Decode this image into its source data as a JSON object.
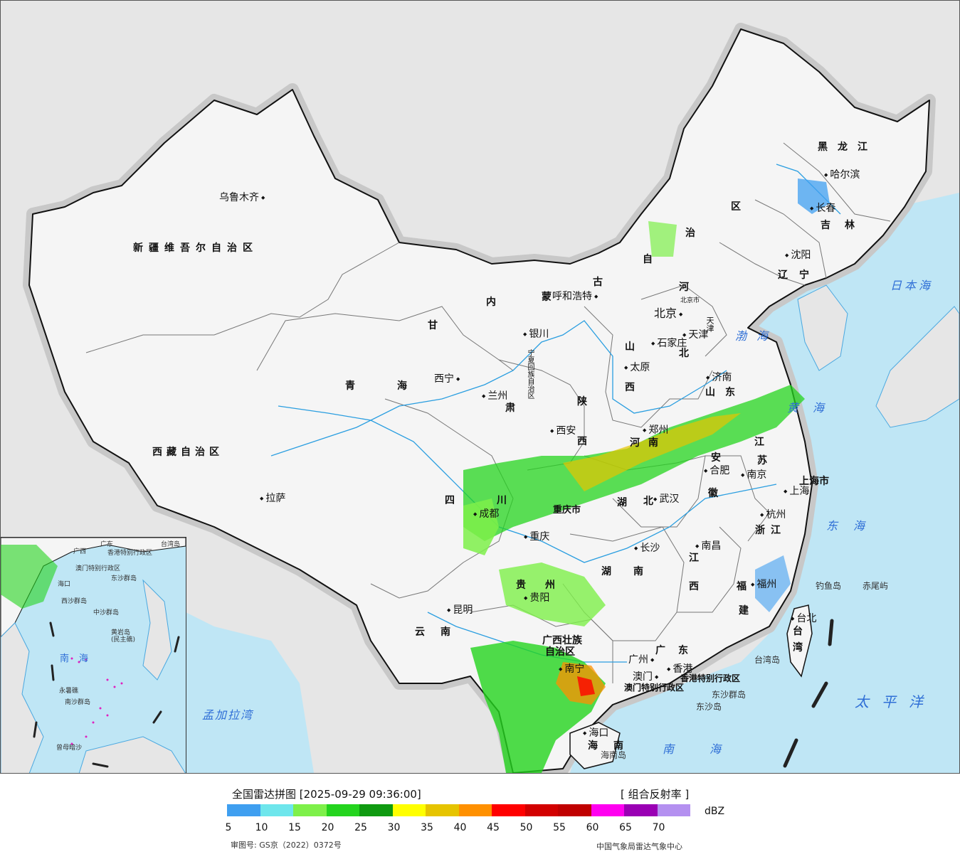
{
  "legend": {
    "title": "全国雷达拼图 [2025-09-29 09:36:00]",
    "product": "[ 组合反射率 ]",
    "unit": "dBZ",
    "ticks": [
      "5",
      "10",
      "15",
      "20",
      "25",
      "30",
      "35",
      "40",
      "45",
      "50",
      "55",
      "60",
      "65",
      "70"
    ],
    "colors": [
      "#3f9ff0",
      "#6ee6ec",
      "#7ef04a",
      "#24d41e",
      "#0f9a10",
      "#ffff00",
      "#e6c400",
      "#ff9000",
      "#ff0000",
      "#d20000",
      "#c00000",
      "#ff00f0",
      "#9a00b4",
      "#b490f0"
    ],
    "approval": "审图号: GS京（2022）0372号",
    "source": "中国气象局雷达气象中心"
  },
  "map": {
    "colors": {
      "land": "#f5f5f5",
      "ocean": "#bfe6f5",
      "foreign": "#e6e6e6",
      "border": "#111111",
      "river": "#2a9ee0"
    },
    "cities": {
      "urumqi": "乌鲁木齐",
      "lhasa": "拉萨",
      "xining": "西宁",
      "lanzhou": "兰州",
      "yinchuan": "银川",
      "hohhot": "呼和浩特",
      "beijing": "北京",
      "beijing_city": "北京市",
      "tianjin": "天津",
      "shijiazhuang": "石家庄",
      "taiyuan": "太原",
      "jinan": "济南",
      "zhengzhou": "郑州",
      "xian": "西安",
      "chengdu": "成都",
      "chongqing": "重庆",
      "wuhan": "武汉",
      "hefei": "合肥",
      "nanjing": "南京",
      "shanghai": "上海",
      "hangzhou": "杭州",
      "changsha": "长沙",
      "nanchang": "南昌",
      "fuzhou": "福州",
      "guiyang": "贵阳",
      "kunming": "昆明",
      "nanning": "南宁",
      "guangzhou": "广州",
      "hongkong": "香港",
      "macau": "澳门",
      "haikou": "海口",
      "taipei": "台北",
      "harbin": "哈尔滨",
      "changchun": "长春",
      "shenyang": "沈阳"
    },
    "provinces": {
      "xinjiang": "新疆维吾尔自治区",
      "tibet": "西藏自治区",
      "qinghai_1": "青",
      "qinghai_2": "海",
      "gansu_1": "甘",
      "gansu_2": "肃",
      "neimeng_1": "内",
      "neimeng_2": "蒙",
      "neimeng_3": "古",
      "neimeng_4": "自",
      "neimeng_5": "治",
      "neimeng_6": "区",
      "heilongjiang": "黑龙江",
      "jilin": "吉林",
      "liaoning": "辽宁",
      "hebei_1": "河",
      "hebei_2": "北",
      "shanxi_1": "山",
      "shanxi_2": "西",
      "shandong": "山东",
      "shaanxi_1": "陕",
      "shaanxi_2": "西",
      "henan": "河南",
      "ningxia": "宁夏回族自治区",
      "sichuan_1": "四",
      "sichuan_2": "川",
      "chongqing_prov": "重庆市",
      "hubei_1": "湖",
      "hubei_2": "北",
      "anhui_1": "安",
      "anhui_2": "徽",
      "jiangsu_1": "江",
      "jiangsu_2": "苏",
      "shanghai_prov": "上海市",
      "zhejiang": "浙江",
      "hunan_1": "湖",
      "hunan_2": "南",
      "jiangxi_1": "江",
      "jiangxi_2": "西",
      "fujian_1": "福",
      "fujian_2": "建",
      "guizhou_1": "贵",
      "guizhou_2": "州",
      "yunnan": "云南",
      "guangxi_1": "广西壮族",
      "guangxi_2": "自治区",
      "guangdong": "广东",
      "hk_region": "香港特别行政区",
      "macau_region": "澳门特别行政区",
      "hainan_1": "海",
      "hainan_2": "南",
      "taiwan_1": "台",
      "taiwan_2": "湾",
      "tianjin_prov": "天津"
    },
    "seas": {
      "japan_sea": "日本海",
      "bohai": "渤海",
      "yellow_sea": "黄海",
      "east_sea": "东海",
      "pacific": "太平洋",
      "south_sea": "南海",
      "bengal": "孟加拉湾"
    },
    "islands": {
      "diaoyu": "钓鱼岛",
      "chiwei": "赤尾屿",
      "dongsha": "东沙群岛",
      "dongsha_2": "东沙岛",
      "taiwan_island": "台湾岛",
      "hainan_island": "海南岛"
    },
    "inset": {
      "south_sea": "南海",
      "hk": "香港特别行政区",
      "macau": "澳门特别行政区",
      "dongsha": "东沙群岛",
      "xisha": "西沙群岛",
      "zhongsha": "中沙群岛",
      "nansha": "南沙群岛",
      "haikou": "海口",
      "taiwan": "台湾岛",
      "guangxi": "广西",
      "guangdong": "广东",
      "huangyan": "黄岩岛",
      "yongshu": "永暑礁",
      "zengmu": "曾母暗沙",
      "minzhu": "(民主礁)"
    }
  }
}
